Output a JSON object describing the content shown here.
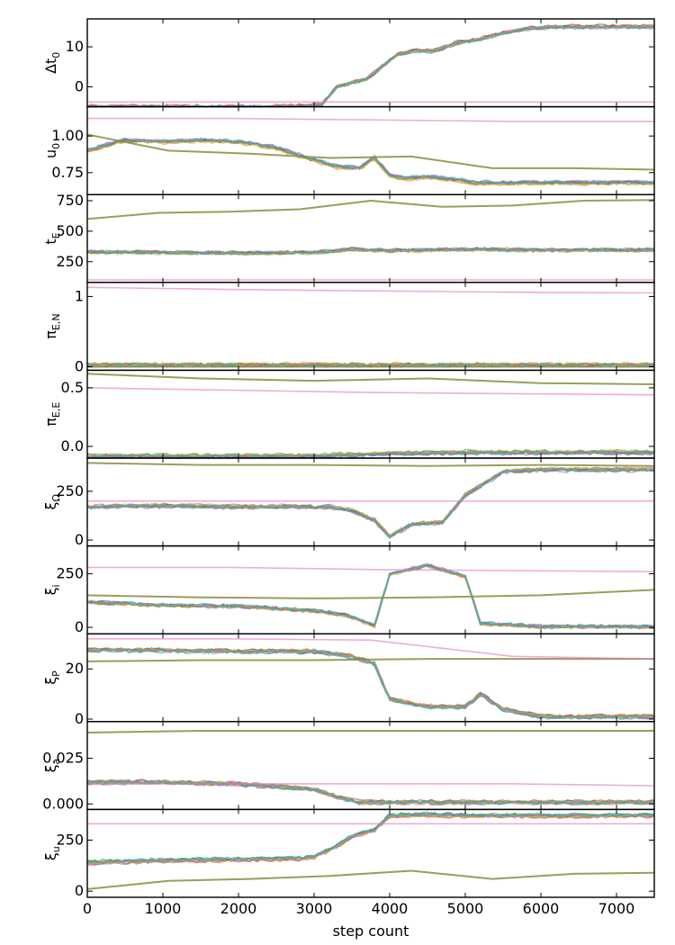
{
  "figure": {
    "xlabel": "step count",
    "x_ticks": [
      0,
      1000,
      2000,
      3000,
      4000,
      5000,
      6000,
      7000
    ],
    "x_tick_labels": [
      "0",
      "1000",
      "2000",
      "3000",
      "4000",
      "5000",
      "6000",
      "7000"
    ],
    "xlim": [
      0,
      7500
    ]
  },
  "colors": {
    "walkers": [
      "#1f77b4",
      "#ff7f0e",
      "#2ca02c",
      "#d62728",
      "#9467bd",
      "#8c564b",
      "#e377c2",
      "#7f7f7f",
      "#bcbd22",
      "#17becf"
    ],
    "outlier_walker": "#e377c2",
    "stuck_walker": "#8c8c40"
  },
  "chart_data": [
    {
      "type": "line",
      "ylabel": "Δt0",
      "ylabel_main": "Δt",
      "ylabel_sub": "0",
      "ylim": [
        -5,
        17
      ],
      "y_ticks": [
        0,
        10
      ],
      "y_tick_labels": [
        "0",
        "10"
      ],
      "x": [
        0,
        2500,
        2800,
        3100,
        3300,
        3500,
        3700,
        3900,
        4100,
        4300,
        4600,
        4900,
        5200,
        5500,
        5800,
        6200,
        7500
      ],
      "main_values": [
        -5,
        -5,
        -4.8,
        -4.5,
        0,
        1,
        2,
        5,
        8,
        9,
        9,
        11,
        12,
        13.5,
        14.5,
        15,
        15
      ],
      "stuck_values": [
        -5,
        -5.2,
        -5.5,
        -6,
        -6.5
      ],
      "outlier_values": [
        -3.8,
        -3.8,
        -3.8,
        -3.8,
        -3.8
      ]
    },
    {
      "type": "line",
      "ylabel": "u0",
      "ylabel_main": "u",
      "ylabel_sub": "0",
      "ylim": [
        0.6,
        1.2
      ],
      "y_ticks": [
        0.75,
        1.0
      ],
      "y_tick_labels": [
        "0.75",
        "1.00"
      ],
      "x": [
        0,
        500,
        1000,
        1500,
        2000,
        2500,
        2900,
        3300,
        3600,
        3800,
        4000,
        4200,
        4500,
        4900,
        5100,
        5500,
        6000,
        7500
      ],
      "main_values": [
        0.9,
        0.97,
        0.96,
        0.97,
        0.96,
        0.92,
        0.85,
        0.79,
        0.78,
        0.85,
        0.73,
        0.71,
        0.72,
        0.7,
        0.68,
        0.68,
        0.68,
        0.68
      ],
      "stuck_values": [
        1.01,
        0.9,
        0.88,
        0.85,
        0.86,
        0.78,
        0.78,
        0.77
      ],
      "outlier_values": [
        1.12,
        1.12,
        1.11,
        1.1,
        1.1
      ]
    },
    {
      "type": "line",
      "ylabel": "tE",
      "ylabel_main": "t",
      "ylabel_sub": "E",
      "ylim": [
        80,
        800
      ],
      "y_ticks": [
        250,
        500,
        750
      ],
      "y_tick_labels": [
        "250",
        "500",
        "750"
      ],
      "x": [
        0,
        1000,
        2000,
        3000,
        3500,
        4000,
        4500,
        5000,
        6000,
        7500
      ],
      "main_values": [
        330,
        325,
        320,
        325,
        350,
        340,
        345,
        350,
        345,
        345
      ],
      "stuck_values": [
        600,
        650,
        660,
        680,
        750,
        700,
        710,
        750,
        755
      ],
      "outlier_values": [
        100,
        100,
        100,
        100,
        100
      ]
    },
    {
      "type": "line",
      "ylabel": "πE,N",
      "ylabel_main": "π",
      "ylabel_sub": "E,N",
      "ylim": [
        -0.05,
        1.2
      ],
      "y_ticks": [
        0,
        1
      ],
      "y_tick_labels": [
        "0",
        "1"
      ],
      "x": [
        0,
        7500
      ],
      "main_values": [
        0.03,
        0.03
      ],
      "stuck_values": [
        0.0,
        0.0
      ],
      "outlier_values": [
        1.13,
        1.1,
        1.08,
        1.06,
        1.05
      ]
    },
    {
      "type": "line",
      "ylabel": "πE,E",
      "ylabel_main": "π",
      "ylabel_sub": "E,E",
      "ylim": [
        -0.1,
        0.65
      ],
      "y_ticks": [
        0.0,
        0.5
      ],
      "y_tick_labels": [
        "0.0",
        "0.5"
      ],
      "x": [
        0,
        3000,
        4000,
        5000,
        6000,
        7500
      ],
      "main_values": [
        -0.08,
        -0.08,
        -0.06,
        -0.05,
        -0.05,
        -0.05
      ],
      "stuck_values": [
        0.62,
        0.58,
        0.56,
        0.58,
        0.54,
        0.53
      ],
      "outlier_values": [
        0.5,
        0.48,
        0.46,
        0.45,
        0.44
      ]
    },
    {
      "type": "line",
      "ylabel": "ξΩ",
      "ylabel_main": "ξ",
      "ylabel_sub": "Ω",
      "ylim": [
        -30,
        420
      ],
      "y_ticks": [
        0,
        250
      ],
      "y_tick_labels": [
        "0",
        "250"
      ],
      "x": [
        0,
        1000,
        2000,
        3000,
        3200,
        3500,
        3800,
        4000,
        4300,
        4700,
        5000,
        5300,
        5500,
        6000,
        7500
      ],
      "main_values": [
        170,
        175,
        170,
        170,
        170,
        150,
        100,
        20,
        80,
        90,
        230,
        300,
        350,
        360,
        360
      ],
      "stuck_values": [
        395,
        385,
        385,
        380,
        385,
        380
      ],
      "outlier_values": [
        200,
        200,
        200,
        200,
        200
      ]
    },
    {
      "type": "line",
      "ylabel": "ξi",
      "ylabel_main": "ξ",
      "ylabel_sub": "i",
      "ylim": [
        -30,
        380
      ],
      "y_ticks": [
        0,
        250
      ],
      "y_tick_labels": [
        "0",
        "250"
      ],
      "x": [
        0,
        1000,
        2000,
        3000,
        3400,
        3800,
        4000,
        4500,
        5000,
        5200,
        6000,
        7500
      ],
      "main_values": [
        120,
        105,
        100,
        80,
        60,
        10,
        250,
        290,
        240,
        20,
        5,
        5
      ],
      "stuck_values": [
        150,
        140,
        135,
        140,
        150,
        175
      ],
      "outlier_values": [
        280,
        280,
        270,
        265,
        260
      ]
    },
    {
      "type": "line",
      "ylabel": "ξP",
      "ylabel_main": "ξ",
      "ylabel_sub": "P",
      "ylim": [
        -1,
        34
      ],
      "y_ticks": [
        0,
        20
      ],
      "y_tick_labels": [
        "0",
        "20"
      ],
      "x": [
        0,
        1000,
        2000,
        3000,
        3500,
        3800,
        4000,
        4500,
        5000,
        5200,
        5500,
        6000,
        7500
      ],
      "main_values": [
        27.5,
        27.5,
        27,
        27,
        25,
        22,
        8,
        5,
        5,
        10,
        4,
        1,
        1
      ],
      "stuck_values": [
        23,
        23.5,
        23.5,
        24,
        24,
        24
      ],
      "outlier_values": [
        32,
        32,
        31.5,
        25,
        24
      ]
    },
    {
      "type": "line",
      "ylabel": "ξa",
      "ylabel_main": "ξ",
      "ylabel_sub": "a",
      "ylim": [
        -0.003,
        0.045
      ],
      "y_ticks": [
        0.0,
        0.025
      ],
      "y_tick_labels": [
        "0.000",
        "0.025"
      ],
      "x": [
        0,
        1000,
        2000,
        3000,
        3300,
        3600,
        4000,
        7500
      ],
      "main_values": [
        0.012,
        0.012,
        0.011,
        0.008,
        0.004,
        0.001,
        0.001,
        0.001
      ],
      "stuck_values": [
        0.039,
        0.04,
        0.04,
        0.04,
        0.04,
        0.04
      ],
      "outlier_values": [
        0.011,
        0.011,
        0.011,
        0.011,
        0.01
      ]
    },
    {
      "type": "line",
      "ylabel": "ξu",
      "ylabel_main": "ξ",
      "ylabel_sub": "u",
      "ylim": [
        -30,
        400
      ],
      "y_ticks": [
        0,
        250
      ],
      "y_tick_labels": [
        "0",
        "250"
      ],
      "x": [
        0,
        1000,
        2000,
        2800,
        3000,
        3300,
        3500,
        3800,
        4000,
        4500,
        5000,
        7500
      ],
      "main_values": [
        140,
        150,
        155,
        160,
        170,
        220,
        270,
        300,
        370,
        375,
        370,
        370
      ],
      "stuck_values": [
        10,
        50,
        60,
        75,
        100,
        60,
        85,
        90
      ],
      "outlier_values": [
        330,
        330,
        330,
        330,
        330
      ]
    }
  ]
}
